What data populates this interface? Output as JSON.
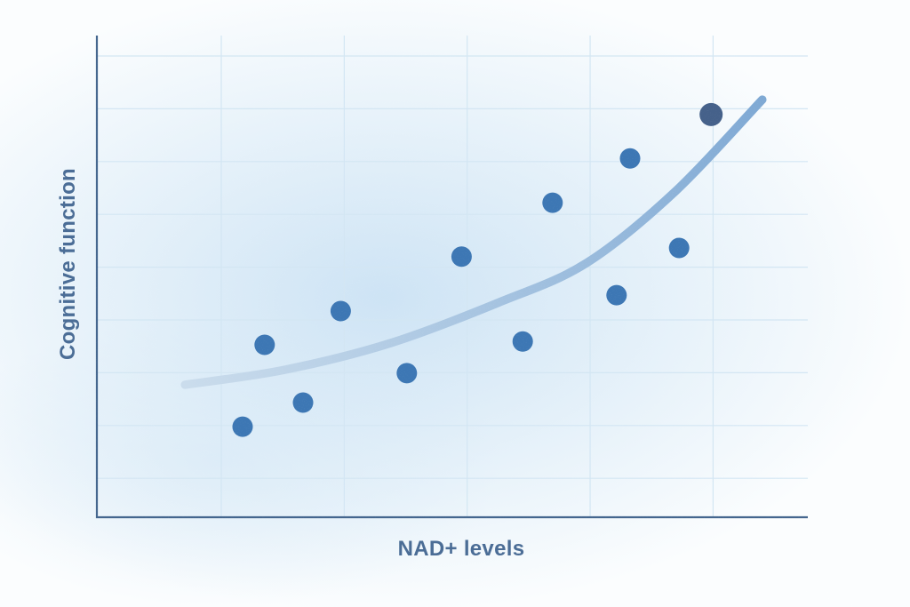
{
  "chart_data": {
    "type": "scatter",
    "xlabel": "NAD+ levels",
    "ylabel": "Cognitive function",
    "xlim": [
      0,
      100
    ],
    "ylim": [
      0,
      100
    ],
    "grid": true,
    "legend": false,
    "tick_labels": "none",
    "points": [
      {
        "x": 20.5,
        "y": 18.8
      },
      {
        "x": 23.6,
        "y": 35.8
      },
      {
        "x": 29.0,
        "y": 23.8
      },
      {
        "x": 34.3,
        "y": 42.8
      },
      {
        "x": 43.6,
        "y": 29.9
      },
      {
        "x": 51.3,
        "y": 54.1
      },
      {
        "x": 59.9,
        "y": 36.5
      },
      {
        "x": 64.1,
        "y": 65.3
      },
      {
        "x": 73.1,
        "y": 46.1
      },
      {
        "x": 75.0,
        "y": 74.5
      },
      {
        "x": 81.9,
        "y": 55.9
      },
      {
        "x": 86.4,
        "y": 83.6,
        "emphasis": true
      }
    ],
    "trend": {
      "type": "smooth-curve",
      "points": [
        {
          "x": 12.4,
          "y": 27.5
        },
        {
          "x": 26.4,
          "y": 30.6
        },
        {
          "x": 41.4,
          "y": 36.2
        },
        {
          "x": 56.4,
          "y": 44.5
        },
        {
          "x": 68.9,
          "y": 52.8
        },
        {
          "x": 81.4,
          "y": 67.7
        },
        {
          "x": 93.6,
          "y": 86.7
        }
      ]
    },
    "colors": {
      "point": "#3d77b4",
      "point_emphasis": "#45618a",
      "trend_start": "#cadcec",
      "trend_end": "#7fa9d4",
      "axis": "#44668e",
      "grid": "#d3e6f3",
      "label": "#4b6d96",
      "background_glow": "#d5e8f5"
    }
  }
}
